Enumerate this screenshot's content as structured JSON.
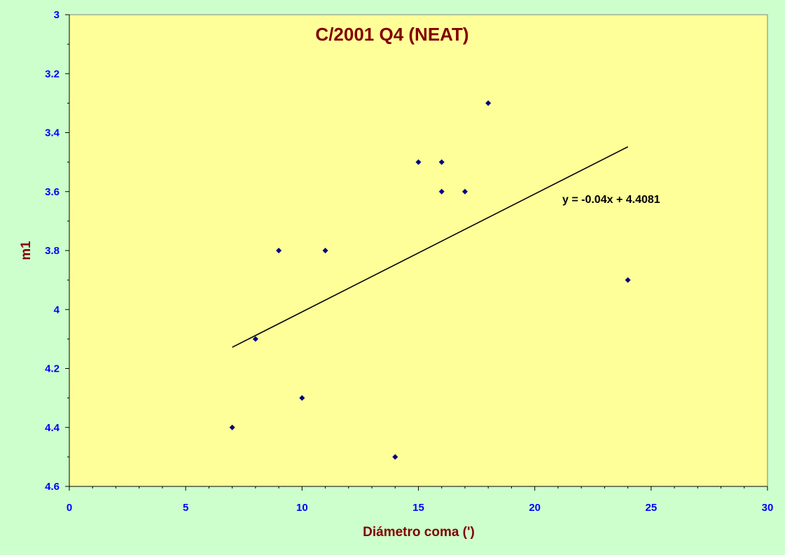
{
  "chart_data": {
    "type": "scatter",
    "title": "C/2001 Q4 (NEAT)",
    "xlabel": "Diámetro coma (')",
    "ylabel": "m1",
    "xlim": [
      0,
      30
    ],
    "ylim": [
      3,
      4.6
    ],
    "y_axis_reversed": true,
    "x_ticks": [
      0,
      5,
      10,
      15,
      20,
      25,
      30
    ],
    "y_ticks": [
      3,
      3.2,
      3.4,
      3.6,
      3.8,
      4,
      4.2,
      4.4,
      4.6
    ],
    "x_tick_labels": [
      "0",
      "5",
      "10",
      "15",
      "20",
      "25",
      "30"
    ],
    "y_tick_labels": [
      "3",
      "3.2",
      "3.4",
      "3.6",
      "3.8",
      "4",
      "4.2",
      "4.4",
      "4.6"
    ],
    "grid": false,
    "legend": "none",
    "points": [
      {
        "x": 7,
        "y": 4.4
      },
      {
        "x": 8,
        "y": 4.1
      },
      {
        "x": 9,
        "y": 3.8
      },
      {
        "x": 10,
        "y": 4.3
      },
      {
        "x": 11,
        "y": 3.8
      },
      {
        "x": 14,
        "y": 4.5
      },
      {
        "x": 15,
        "y": 3.5
      },
      {
        "x": 16,
        "y": 3.5
      },
      {
        "x": 16,
        "y": 3.6
      },
      {
        "x": 17,
        "y": 3.6
      },
      {
        "x": 18,
        "y": 3.3
      },
      {
        "x": 24,
        "y": 3.9
      }
    ],
    "trendline": {
      "equation": "y = -0.04x + 4.4081",
      "slope": -0.04,
      "intercept": 4.4081,
      "x_range": [
        7,
        24
      ]
    },
    "colors": {
      "page_background": "#ccffcc",
      "plot_background": "#ffff99",
      "title": "#800000",
      "axis_label": "#800000",
      "tick_label": "#0000ff",
      "marker": "#000080",
      "trendline": "#000000",
      "equation": "#000000"
    }
  }
}
